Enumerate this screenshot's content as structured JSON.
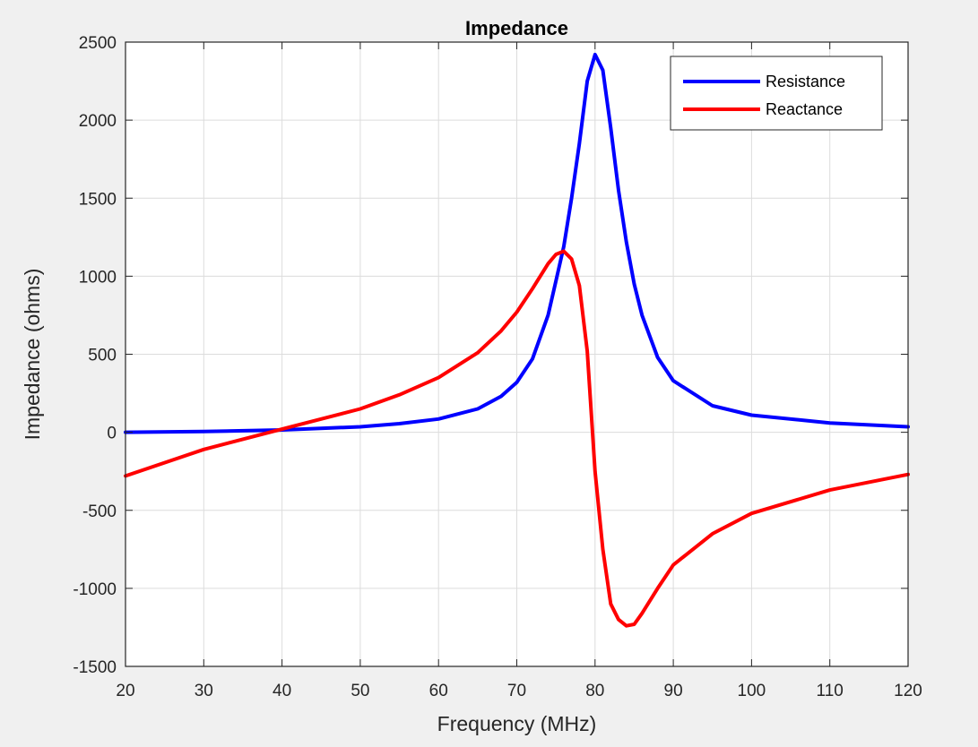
{
  "chart_data": {
    "type": "line",
    "title": "Impedance",
    "xlabel": "Frequency (MHz)",
    "ylabel": "Impedance (ohms)",
    "xlim": [
      20,
      120
    ],
    "ylim": [
      -1500,
      2500
    ],
    "xticks": [
      20,
      30,
      40,
      50,
      60,
      70,
      80,
      90,
      100,
      110,
      120
    ],
    "yticks": [
      -1500,
      -1000,
      -500,
      0,
      500,
      1000,
      1500,
      2000,
      2500
    ],
    "grid": true,
    "legend_position": "top-right",
    "series": [
      {
        "name": "Resistance",
        "color": "#0000ff",
        "x": [
          20,
          30,
          40,
          50,
          55,
          60,
          65,
          68,
          70,
          72,
          74,
          75,
          76,
          77,
          78,
          79,
          80,
          81,
          82,
          83,
          84,
          85,
          86,
          88,
          90,
          95,
          100,
          110,
          120
        ],
        "y": [
          0,
          5,
          15,
          35,
          55,
          85,
          150,
          230,
          320,
          470,
          750,
          970,
          1190,
          1500,
          1850,
          2250,
          2420,
          2320,
          1950,
          1550,
          1220,
          950,
          750,
          480,
          330,
          170,
          110,
          60,
          35
        ]
      },
      {
        "name": "Reactance",
        "color": "#ff0000",
        "x": [
          20,
          30,
          40,
          50,
          55,
          60,
          65,
          68,
          70,
          72,
          74,
          75,
          76,
          77,
          78,
          79,
          80,
          81,
          82,
          83,
          84,
          85,
          86,
          88,
          90,
          95,
          100,
          110,
          120
        ],
        "y": [
          -280,
          -110,
          20,
          150,
          240,
          350,
          510,
          650,
          770,
          920,
          1080,
          1140,
          1160,
          1110,
          940,
          520,
          -250,
          -750,
          -1100,
          -1200,
          -1240,
          -1230,
          -1160,
          -1000,
          -850,
          -650,
          -520,
          -370,
          -270
        ]
      }
    ]
  }
}
